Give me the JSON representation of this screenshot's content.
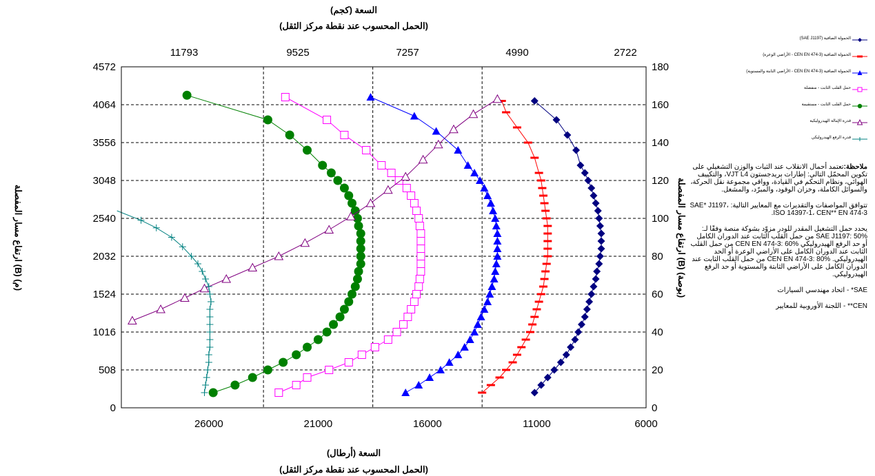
{
  "chart_data": {
    "type": "scatter",
    "top_axis": {
      "title_line1": "السعة (كجم)",
      "title_line2": "(الحمل المحسوب عند نقطة مركز الثقل)",
      "ticks": [
        "11793",
        "9525",
        "7257",
        "4990",
        "2722"
      ]
    },
    "bottom_axis": {
      "title_line1": "السعة (أرطال)",
      "title_line2": "(الحمل المحسوب عند نقطة مركز الثقل)",
      "ticks": [
        26000,
        21000,
        16000,
        11000,
        6000
      ],
      "range": [
        30000,
        6000
      ],
      "reversed": true
    },
    "left_axis": {
      "title": "ارتفاع مسار المفصلة (B) (م)",
      "ticks": [
        "0",
        "508",
        "1016",
        "1524",
        "2032",
        "2540",
        "3048",
        "3556",
        "4064",
        "4572"
      ]
    },
    "right_axis": {
      "title": "ارتفاع مسار المفصلة (B) (بوصة)",
      "ticks": [
        0,
        20,
        40,
        60,
        80,
        100,
        120,
        140,
        160,
        180
      ],
      "range": [
        0,
        180
      ]
    },
    "grid": true,
    "x_unit": "lb",
    "y_unit": "in",
    "legend": {
      "position": "top-right"
    },
    "series": [
      {
        "name": "الحمولة الصافية (SAE J1197)",
        "color": "#000080",
        "marker": "diamond",
        "points": [
          [
            11100,
            8
          ],
          [
            10800,
            12
          ],
          [
            10500,
            16
          ],
          [
            10200,
            20
          ],
          [
            9900,
            24
          ],
          [
            9650,
            28
          ],
          [
            9450,
            32
          ],
          [
            9250,
            36
          ],
          [
            9100,
            40
          ],
          [
            8950,
            44
          ],
          [
            8800,
            48
          ],
          [
            8700,
            52
          ],
          [
            8600,
            56
          ],
          [
            8500,
            60
          ],
          [
            8400,
            64
          ],
          [
            8300,
            68
          ],
          [
            8250,
            72
          ],
          [
            8150,
            76
          ],
          [
            8100,
            80
          ],
          [
            8050,
            84
          ],
          [
            8050,
            88
          ],
          [
            8050,
            92
          ],
          [
            8100,
            96
          ],
          [
            8150,
            100
          ],
          [
            8200,
            104
          ],
          [
            8300,
            108
          ],
          [
            8400,
            112
          ],
          [
            8500,
            116
          ],
          [
            8650,
            120
          ],
          [
            8800,
            124
          ],
          [
            9000,
            128
          ],
          [
            9200,
            136
          ],
          [
            9600,
            144
          ],
          [
            10100,
            152
          ],
          [
            11100,
            162
          ]
        ]
      },
      {
        "name": "الحمولة الصافية (CEN EN 474-3 - الأراضي الوعرة)",
        "color": "#ff0000",
        "marker": "dash",
        "points": [
          [
            13500,
            8
          ],
          [
            13100,
            12
          ],
          [
            12700,
            16
          ],
          [
            12400,
            20
          ],
          [
            12100,
            24
          ],
          [
            11900,
            28
          ],
          [
            11700,
            32
          ],
          [
            11500,
            36
          ],
          [
            11300,
            40
          ],
          [
            11200,
            44
          ],
          [
            11100,
            48
          ],
          [
            11000,
            52
          ],
          [
            10900,
            56
          ],
          [
            10800,
            60
          ],
          [
            10700,
            64
          ],
          [
            10650,
            68
          ],
          [
            10600,
            72
          ],
          [
            10550,
            76
          ],
          [
            10500,
            80
          ],
          [
            10500,
            84
          ],
          [
            10500,
            88
          ],
          [
            10500,
            92
          ],
          [
            10500,
            96
          ],
          [
            10550,
            100
          ],
          [
            10600,
            104
          ],
          [
            10650,
            108
          ],
          [
            10700,
            112
          ],
          [
            10750,
            116
          ],
          [
            10800,
            120
          ],
          [
            10900,
            124
          ],
          [
            11100,
            132
          ],
          [
            11400,
            140
          ],
          [
            11900,
            148
          ],
          [
            12400,
            156
          ],
          [
            12600,
            162
          ]
        ]
      },
      {
        "name": "الحمولة الصافية (CEN EN 474-3 - الأراضي الثابتة والمستوية)",
        "color": "#0000ff",
        "marker": "triangle",
        "points": [
          [
            17000,
            8
          ],
          [
            16400,
            12
          ],
          [
            15900,
            16
          ],
          [
            15400,
            20
          ],
          [
            15000,
            24
          ],
          [
            14600,
            28
          ],
          [
            14300,
            32
          ],
          [
            14050,
            36
          ],
          [
            13850,
            40
          ],
          [
            13700,
            44
          ],
          [
            13550,
            48
          ],
          [
            13400,
            52
          ],
          [
            13250,
            56
          ],
          [
            13150,
            60
          ],
          [
            13050,
            64
          ],
          [
            12950,
            68
          ],
          [
            12900,
            72
          ],
          [
            12850,
            76
          ],
          [
            12800,
            80
          ],
          [
            12800,
            84
          ],
          [
            12800,
            88
          ],
          [
            12800,
            92
          ],
          [
            12850,
            96
          ],
          [
            12900,
            100
          ],
          [
            13000,
            104
          ],
          [
            13100,
            108
          ],
          [
            13250,
            112
          ],
          [
            13400,
            116
          ],
          [
            13600,
            120
          ],
          [
            13850,
            124
          ],
          [
            14150,
            128
          ],
          [
            14600,
            136
          ],
          [
            15600,
            146
          ],
          [
            16600,
            154
          ],
          [
            18600,
            164
          ]
        ]
      },
      {
        "name": "حمل القلب الثابت - منفصلة",
        "color": "#ff00ff",
        "marker": "square",
        "points": [
          [
            22800,
            8
          ],
          [
            22000,
            12
          ],
          [
            21500,
            16
          ],
          [
            20500,
            20
          ],
          [
            19600,
            24
          ],
          [
            19000,
            28
          ],
          [
            18400,
            32
          ],
          [
            17800,
            36
          ],
          [
            17400,
            40
          ],
          [
            17100,
            44
          ],
          [
            16900,
            48
          ],
          [
            16750,
            52
          ],
          [
            16600,
            56
          ],
          [
            16500,
            60
          ],
          [
            16400,
            64
          ],
          [
            16350,
            68
          ],
          [
            16300,
            72
          ],
          [
            16300,
            76
          ],
          [
            16300,
            80
          ],
          [
            16300,
            84
          ],
          [
            16300,
            88
          ],
          [
            16300,
            92
          ],
          [
            16350,
            96
          ],
          [
            16400,
            100
          ],
          [
            16500,
            104
          ],
          [
            16600,
            108
          ],
          [
            16750,
            112
          ],
          [
            16950,
            116
          ],
          [
            17300,
            120
          ],
          [
            17650,
            124
          ],
          [
            18100,
            128
          ],
          [
            18800,
            136
          ],
          [
            19800,
            144
          ],
          [
            20600,
            152
          ],
          [
            22500,
            164
          ]
        ]
      },
      {
        "name": "حمل القلب الثابت - مستقيمة",
        "color": "#008000",
        "marker": "circle",
        "points": [
          [
            25800,
            8
          ],
          [
            24800,
            12
          ],
          [
            24000,
            16
          ],
          [
            23300,
            20
          ],
          [
            22600,
            24
          ],
          [
            22000,
            28
          ],
          [
            21500,
            32
          ],
          [
            21000,
            36
          ],
          [
            20600,
            40
          ],
          [
            20300,
            44
          ],
          [
            20000,
            48
          ],
          [
            19800,
            52
          ],
          [
            19600,
            56
          ],
          [
            19450,
            60
          ],
          [
            19300,
            64
          ],
          [
            19200,
            68
          ],
          [
            19150,
            72
          ],
          [
            19050,
            76
          ],
          [
            19050,
            80
          ],
          [
            19050,
            84
          ],
          [
            19050,
            88
          ],
          [
            19050,
            92
          ],
          [
            19150,
            96
          ],
          [
            19200,
            100
          ],
          [
            19300,
            104
          ],
          [
            19450,
            108
          ],
          [
            19600,
            112
          ],
          [
            19800,
            116
          ],
          [
            20100,
            120
          ],
          [
            20400,
            124
          ],
          [
            20800,
            128
          ],
          [
            21500,
            136
          ],
          [
            22300,
            144
          ],
          [
            23300,
            152
          ],
          [
            27000,
            165
          ]
        ]
      },
      {
        "name": "قدرة الإمالة الهيدروليكية",
        "color": "#800080",
        "marker": "triangle-open",
        "points": [
          [
            29500,
            46
          ],
          [
            28200,
            52
          ],
          [
            27100,
            58
          ],
          [
            26200,
            63
          ],
          [
            25200,
            68
          ],
          [
            24000,
            74
          ],
          [
            22800,
            80
          ],
          [
            21600,
            87
          ],
          [
            20500,
            94
          ],
          [
            19500,
            101
          ],
          [
            18600,
            108
          ],
          [
            17800,
            115
          ],
          [
            17000,
            122
          ],
          [
            16200,
            131
          ],
          [
            15500,
            139
          ],
          [
            14800,
            147
          ],
          [
            13900,
            155
          ],
          [
            12800,
            163
          ]
        ]
      },
      {
        "name": "قدرة الرفع الهيدروليكي",
        "color": "#008080",
        "marker": "plus",
        "points": [
          [
            26200,
            8
          ],
          [
            26150,
            12
          ],
          [
            26100,
            16
          ],
          [
            26050,
            20
          ],
          [
            26000,
            24
          ],
          [
            26000,
            28
          ],
          [
            25950,
            32
          ],
          [
            25950,
            36
          ],
          [
            25950,
            40
          ],
          [
            25950,
            44
          ],
          [
            25950,
            48
          ],
          [
            25950,
            52
          ],
          [
            25900,
            56
          ],
          [
            25950,
            60
          ],
          [
            26000,
            64
          ],
          [
            26150,
            68
          ],
          [
            26300,
            72
          ],
          [
            26500,
            76
          ],
          [
            26800,
            80
          ],
          [
            27200,
            85
          ],
          [
            27700,
            90
          ],
          [
            28400,
            95
          ],
          [
            29100,
            99
          ],
          [
            30200,
            104
          ]
        ]
      }
    ]
  },
  "notes": {
    "note_label": "ملاحظة:",
    "note_text": "تعتمد أحمال الانقلاب عند الثبات والوزن التشغيلي على تكوين المحمّل التالي: إطارات بريدجستون VJT L4، والتكييف الهوائي، ونظام التحكم في القيادة، وواقي مجموعة نقل الحركة، والسوائل الكاملة، وخزان الوقود، والمبرّد، والمشغل.",
    "standards": "تتوافق المواصفات والتقديرات مع المعايير التالية: SAE* J1197، ISO 14397-1، CEN** EN 474-3.",
    "rated_intro": "يحدد حمل التشغيل المقدر للودر مزوّد بشوكة منصة وفقًا لـ:",
    "rated_sae": "SAE J1197: 50% من حمل القلب الثابت عند الدوران الكامل أو حد الرفع الهيدروليكي",
    "rated_cen60": "CEN EN 474-3: 60% من حمل القلب الثابت عند الدوران الكامل على الأراضي الوعرة أو الحد الهيدروليكي.",
    "rated_cen80": "CEN EN 474-3: 80% من حمل القلب الثابت عند الدوران الكامل على الأراضي الثابتة والمستوية أو حد الرفع الهيدروليكي.",
    "sae_def": "SAE* - اتحاد مهندسي السيارات",
    "cen_def": "CEN** - اللجنة الأوروبية للمعايير"
  }
}
